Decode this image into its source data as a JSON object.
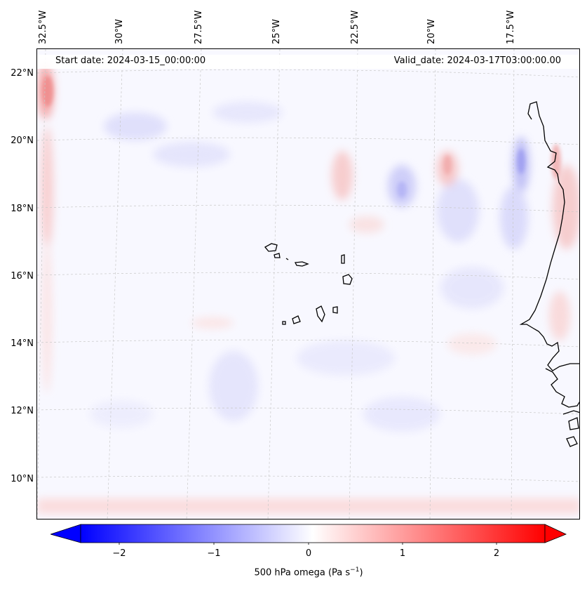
{
  "map": {
    "start_date": "Start date: 2024-03-15_00:00:00",
    "valid_date": "Valid_date: 2024-03-17T03:00:00.00",
    "lon_labels": [
      "32.5°W",
      "30°W",
      "27.5°W",
      "25°W",
      "22.5°W",
      "20°W",
      "17.5°W"
    ],
    "lat_labels": [
      "22°N",
      "20°N",
      "18°N",
      "16°N",
      "14°N",
      "12°N",
      "10°N"
    ],
    "field": "500 hPa omega",
    "colors": {
      "negative": "#0000ff",
      "neutral": "#ffffff",
      "positive": "#ff0000",
      "coast": "#000000",
      "grid": "#cccccc"
    }
  },
  "colorbar": {
    "ticks": [
      "−2",
      "−1",
      "0",
      "1",
      "2"
    ],
    "label": "500 hPa omega (Pa s",
    "label_sup": "−1",
    "label_end": ")",
    "range": [
      -2.6,
      2.6
    ]
  }
}
